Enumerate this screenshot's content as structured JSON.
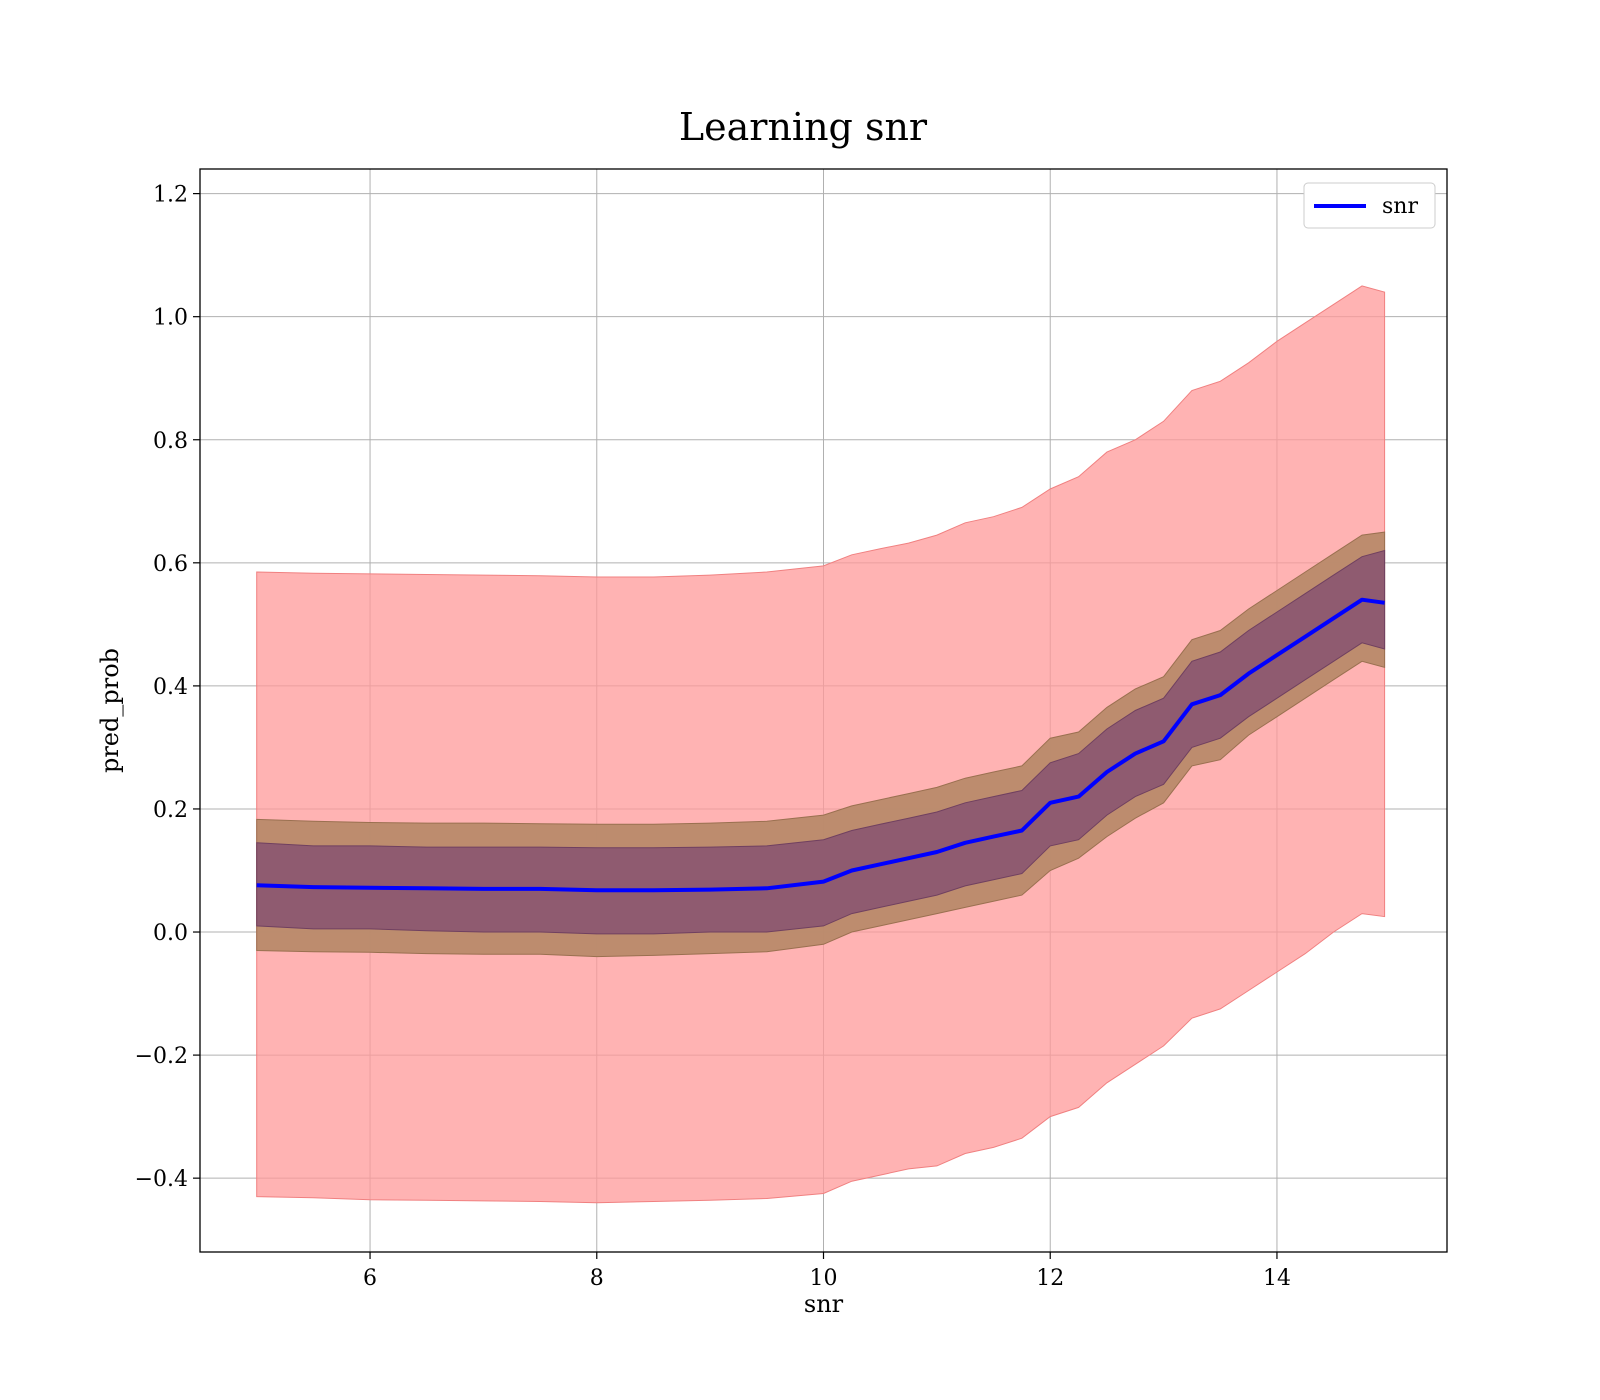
{
  "chart_data": {
    "type": "line",
    "title": "Learning snr",
    "xlabel": "snr",
    "ylabel": "pred_prob",
    "xlim": [
      4.5,
      15.5
    ],
    "ylim": [
      -0.52,
      1.24
    ],
    "xticks": [
      6,
      8,
      10,
      12,
      14
    ],
    "yticks": [
      -0.4,
      -0.2,
      0.0,
      0.2,
      0.4,
      0.6,
      0.8,
      1.0,
      1.2
    ],
    "ytick_labels": [
      "−0.4",
      "−0.2",
      "0.0",
      "0.2",
      "0.4",
      "0.6",
      "0.8",
      "1.0",
      "1.2"
    ],
    "xtick_labels": [
      "6",
      "8",
      "10",
      "12",
      "14"
    ],
    "grid": true,
    "legend_position": "upper right",
    "colors": {
      "line": "#0000ff",
      "band_outer": "#ff9999",
      "band_middle": "#b98a6a",
      "band_inner": "#8a5570"
    },
    "series": [
      {
        "name": "snr",
        "x": [
          5.0,
          5.5,
          6.0,
          6.5,
          7.0,
          7.5,
          8.0,
          8.5,
          9.0,
          9.5,
          10.0,
          10.25,
          10.5,
          10.75,
          11.0,
          11.25,
          11.5,
          11.75,
          12.0,
          12.25,
          12.5,
          12.75,
          13.0,
          13.25,
          13.5,
          13.75,
          14.0,
          14.25,
          14.5,
          14.75,
          14.95
        ],
        "values": [
          0.076,
          0.073,
          0.072,
          0.071,
          0.07,
          0.07,
          0.068,
          0.068,
          0.069,
          0.071,
          0.082,
          0.1,
          0.11,
          0.12,
          0.13,
          0.145,
          0.155,
          0.165,
          0.21,
          0.22,
          0.26,
          0.29,
          0.31,
          0.37,
          0.385,
          0.42,
          0.45,
          0.48,
          0.51,
          0.54,
          0.535
        ],
        "std1_lower": [
          0.01,
          0.005,
          0.005,
          0.002,
          0.0,
          0.0,
          -0.003,
          -0.003,
          0.0,
          0.0,
          0.01,
          0.03,
          0.04,
          0.05,
          0.06,
          0.075,
          0.085,
          0.095,
          0.14,
          0.15,
          0.19,
          0.22,
          0.24,
          0.3,
          0.315,
          0.35,
          0.38,
          0.41,
          0.44,
          0.47,
          0.46
        ],
        "std1_upper": [
          0.145,
          0.14,
          0.14,
          0.138,
          0.138,
          0.138,
          0.137,
          0.137,
          0.138,
          0.14,
          0.15,
          0.165,
          0.175,
          0.185,
          0.195,
          0.21,
          0.22,
          0.23,
          0.275,
          0.29,
          0.33,
          0.36,
          0.38,
          0.44,
          0.455,
          0.49,
          0.52,
          0.55,
          0.58,
          0.61,
          0.62
        ],
        "std2_lower": [
          -0.03,
          -0.032,
          -0.033,
          -0.035,
          -0.036,
          -0.036,
          -0.04,
          -0.038,
          -0.035,
          -0.032,
          -0.02,
          0.0,
          0.01,
          0.02,
          0.03,
          0.04,
          0.05,
          0.06,
          0.1,
          0.12,
          0.155,
          0.185,
          0.21,
          0.27,
          0.28,
          0.32,
          0.35,
          0.38,
          0.41,
          0.44,
          0.43
        ],
        "std2_upper": [
          0.183,
          0.18,
          0.178,
          0.177,
          0.177,
          0.176,
          0.175,
          0.175,
          0.177,
          0.18,
          0.19,
          0.205,
          0.215,
          0.225,
          0.235,
          0.25,
          0.26,
          0.27,
          0.315,
          0.325,
          0.365,
          0.395,
          0.415,
          0.475,
          0.49,
          0.525,
          0.555,
          0.585,
          0.615,
          0.645,
          0.65
        ],
        "outer_lower": [
          -0.43,
          -0.432,
          -0.435,
          -0.436,
          -0.437,
          -0.438,
          -0.44,
          -0.438,
          -0.436,
          -0.433,
          -0.425,
          -0.405,
          -0.395,
          -0.385,
          -0.38,
          -0.36,
          -0.35,
          -0.335,
          -0.3,
          -0.285,
          -0.245,
          -0.215,
          -0.185,
          -0.14,
          -0.125,
          -0.095,
          -0.065,
          -0.035,
          0.0,
          0.03,
          0.025
        ],
        "outer_upper": [
          0.585,
          0.583,
          0.582,
          0.581,
          0.58,
          0.579,
          0.577,
          0.577,
          0.58,
          0.585,
          0.595,
          0.613,
          0.623,
          0.632,
          0.645,
          0.665,
          0.675,
          0.69,
          0.72,
          0.74,
          0.78,
          0.8,
          0.83,
          0.88,
          0.895,
          0.925,
          0.96,
          0.99,
          1.02,
          1.05,
          1.04
        ]
      }
    ]
  }
}
